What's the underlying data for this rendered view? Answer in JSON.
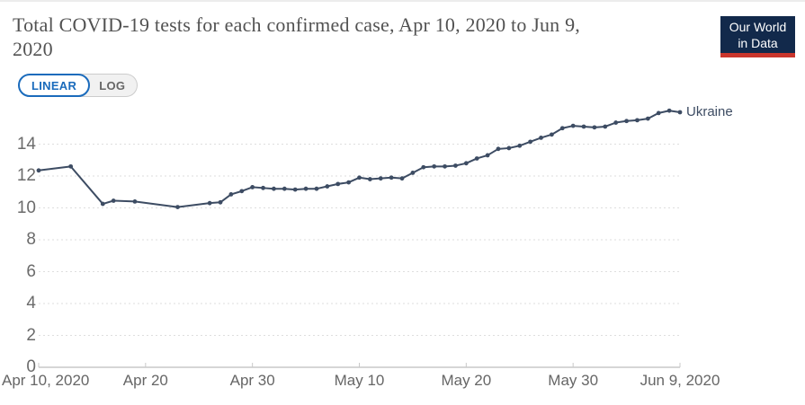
{
  "header": {
    "title": "Total COVID-19 tests for each confirmed case, Apr 10, 2020 to Jun 9, 2020",
    "title_lines": [
      "Total COVID-19 tests for each confirmed case, Apr 10, 2020 to Jun 9,",
      "2020"
    ],
    "logo": {
      "line1": "Our World",
      "line2": "in Data"
    }
  },
  "toolbar": {
    "linear_label": "LINEAR",
    "log_label": "LOG",
    "selected_scale": "LINEAR"
  },
  "colors": {
    "accent_blue": "#1a6bbc",
    "line": "#3d4c63",
    "logo_navy": "#12294b",
    "logo_red": "#c9352c",
    "grid": "#dedede",
    "axis": "#c9c9c9",
    "x_tick_text": "#666666",
    "y_tick_text": "#6b6b6b",
    "title_text": "#525252"
  },
  "chart_data": {
    "type": "line",
    "title": "Total COVID-19 tests for each confirmed case, Apr 10, 2020 to Jun 9, 2020",
    "xlabel": "",
    "ylabel": "",
    "legend": "inline-end-label",
    "grid": "dashed-horizontal",
    "scale_selected": "LINEAR",
    "y_axis": {
      "ticks": [
        0,
        2,
        4,
        6,
        8,
        10,
        12,
        14
      ],
      "range": [
        0,
        16.8
      ]
    },
    "x_axis": {
      "start_date": "2020-04-10",
      "end_date": "2020-06-09",
      "ticks": [
        {
          "label": "Apr 10, 2020",
          "date": "2020-04-10"
        },
        {
          "label": "Apr 20",
          "date": "2020-04-20"
        },
        {
          "label": "Apr 30",
          "date": "2020-04-30"
        },
        {
          "label": "May 10",
          "date": "2020-05-10"
        },
        {
          "label": "May 20",
          "date": "2020-05-20"
        },
        {
          "label": "May 30",
          "date": "2020-05-30"
        },
        {
          "label": "Jun 9, 2020",
          "date": "2020-06-09"
        }
      ]
    },
    "series": [
      {
        "name": "Ukraine",
        "points": [
          {
            "date": "2020-04-10",
            "value": 12.35
          },
          {
            "date": "2020-04-13",
            "value": 12.6
          },
          {
            "date": "2020-04-16",
            "value": 10.25
          },
          {
            "date": "2020-04-17",
            "value": 10.45
          },
          {
            "date": "2020-04-19",
            "value": 10.4
          },
          {
            "date": "2020-04-23",
            "value": 10.05
          },
          {
            "date": "2020-04-26",
            "value": 10.3
          },
          {
            "date": "2020-04-27",
            "value": 10.35
          },
          {
            "date": "2020-04-28",
            "value": 10.85
          },
          {
            "date": "2020-04-29",
            "value": 11.05
          },
          {
            "date": "2020-04-30",
            "value": 11.3
          },
          {
            "date": "2020-05-01",
            "value": 11.25
          },
          {
            "date": "2020-05-02",
            "value": 11.2
          },
          {
            "date": "2020-05-03",
            "value": 11.2
          },
          {
            "date": "2020-05-04",
            "value": 11.15
          },
          {
            "date": "2020-05-05",
            "value": 11.2
          },
          {
            "date": "2020-05-06",
            "value": 11.2
          },
          {
            "date": "2020-05-07",
            "value": 11.35
          },
          {
            "date": "2020-05-08",
            "value": 11.5
          },
          {
            "date": "2020-05-09",
            "value": 11.6
          },
          {
            "date": "2020-05-10",
            "value": 11.9
          },
          {
            "date": "2020-05-11",
            "value": 11.8
          },
          {
            "date": "2020-05-12",
            "value": 11.85
          },
          {
            "date": "2020-05-13",
            "value": 11.9
          },
          {
            "date": "2020-05-14",
            "value": 11.85
          },
          {
            "date": "2020-05-15",
            "value": 12.2
          },
          {
            "date": "2020-05-16",
            "value": 12.55
          },
          {
            "date": "2020-05-17",
            "value": 12.6
          },
          {
            "date": "2020-05-18",
            "value": 12.6
          },
          {
            "date": "2020-05-19",
            "value": 12.65
          },
          {
            "date": "2020-05-20",
            "value": 12.8
          },
          {
            "date": "2020-05-21",
            "value": 13.1
          },
          {
            "date": "2020-05-22",
            "value": 13.3
          },
          {
            "date": "2020-05-23",
            "value": 13.7
          },
          {
            "date": "2020-05-24",
            "value": 13.75
          },
          {
            "date": "2020-05-25",
            "value": 13.9
          },
          {
            "date": "2020-05-26",
            "value": 14.15
          },
          {
            "date": "2020-05-27",
            "value": 14.4
          },
          {
            "date": "2020-05-28",
            "value": 14.6
          },
          {
            "date": "2020-05-29",
            "value": 15.0
          },
          {
            "date": "2020-05-30",
            "value": 15.15
          },
          {
            "date": "2020-05-31",
            "value": 15.1
          },
          {
            "date": "2020-06-01",
            "value": 15.05
          },
          {
            "date": "2020-06-02",
            "value": 15.1
          },
          {
            "date": "2020-06-03",
            "value": 15.35
          },
          {
            "date": "2020-06-04",
            "value": 15.45
          },
          {
            "date": "2020-06-05",
            "value": 15.5
          },
          {
            "date": "2020-06-06",
            "value": 15.6
          },
          {
            "date": "2020-06-07",
            "value": 15.95
          },
          {
            "date": "2020-06-08",
            "value": 16.1
          },
          {
            "date": "2020-06-09",
            "value": 16.0
          }
        ]
      }
    ]
  }
}
